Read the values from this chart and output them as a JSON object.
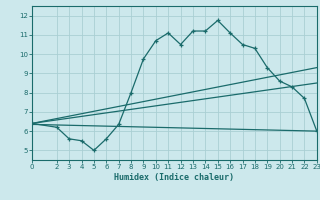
{
  "title": "",
  "xlabel": "Humidex (Indice chaleur)",
  "bg_color": "#cce8ec",
  "grid_color": "#aacfd4",
  "line_color": "#1a6b6b",
  "xlim": [
    0,
    23
  ],
  "ylim": [
    4.5,
    12.5
  ],
  "xticks": [
    0,
    2,
    3,
    4,
    5,
    6,
    7,
    8,
    9,
    10,
    11,
    12,
    13,
    14,
    15,
    16,
    17,
    18,
    19,
    20,
    21,
    22,
    23
  ],
  "yticks": [
    5,
    6,
    7,
    8,
    9,
    10,
    11,
    12
  ],
  "line1_x": [
    0,
    2,
    3,
    4,
    5,
    6,
    7,
    8,
    9,
    10,
    11,
    12,
    13,
    14,
    15,
    16,
    17,
    18,
    19,
    20,
    21,
    22,
    23
  ],
  "line1_y": [
    6.4,
    6.2,
    5.6,
    5.5,
    5.0,
    5.6,
    6.35,
    8.0,
    9.75,
    10.7,
    11.1,
    10.5,
    11.2,
    11.2,
    11.75,
    11.1,
    10.5,
    10.3,
    9.3,
    8.6,
    8.3,
    7.7,
    6.0
  ],
  "line2_x": [
    0,
    23
  ],
  "line2_y": [
    6.4,
    9.3
  ],
  "line3_x": [
    0,
    23
  ],
  "line3_y": [
    6.4,
    8.5
  ],
  "line4_x": [
    0,
    23
  ],
  "line4_y": [
    6.35,
    6.0
  ]
}
